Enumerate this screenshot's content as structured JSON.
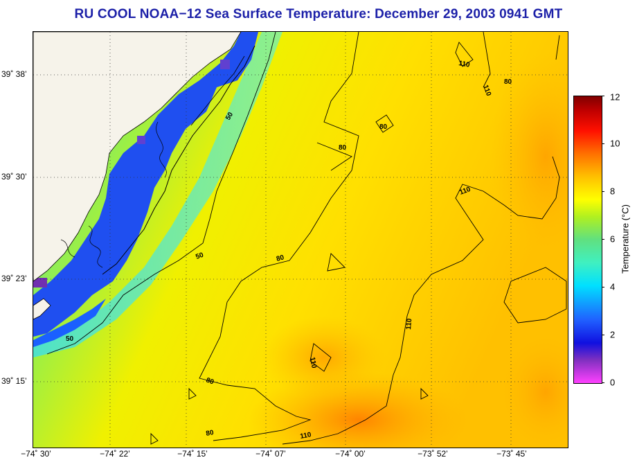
{
  "title": "RU COOL  NOAA−12  Sea Surface Temperature:  December 29, 2003 0941 GMT",
  "map": {
    "lat_labels": [
      "39˚ 38’",
      "39˚ 30’",
      "39˚ 23’",
      "39˚ 15’"
    ],
    "lon_labels": [
      "−74˚ 30’",
      "−74˚ 22’",
      "−74˚ 15’",
      "−74˚ 07’",
      "−74˚ 00’",
      "−73˚ 52’",
      "−73˚ 45’"
    ],
    "contour_labels": [
      "50",
      "50",
      "50",
      "80",
      "80",
      "80",
      "80",
      "80",
      "110",
      "110",
      "110",
      "110",
      "110",
      "110",
      "80"
    ]
  },
  "colorbar": {
    "title": "Temperature (°C)",
    "ticks": [
      "12",
      "10",
      "8",
      "6",
      "4",
      "2",
      "0"
    ],
    "range": [
      0,
      12
    ],
    "colors": [
      "#ff40ff",
      "#1010e0",
      "#00e0ff",
      "#60e080",
      "#ffff00",
      "#ff7000",
      "#800000"
    ]
  }
}
